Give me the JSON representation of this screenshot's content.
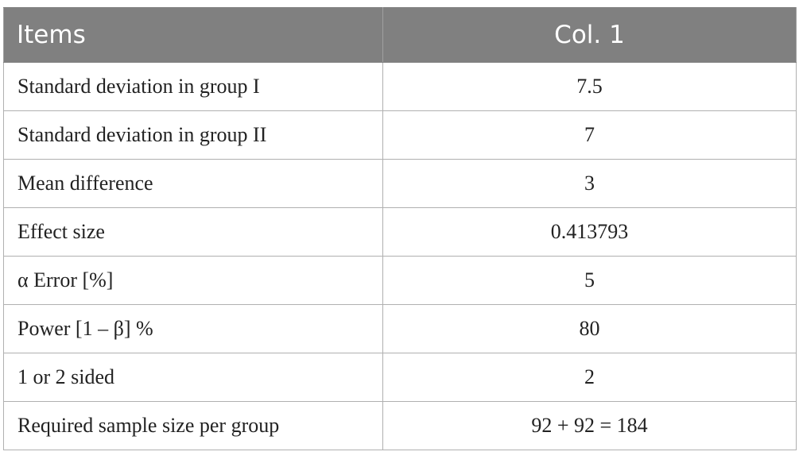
{
  "table": {
    "headers": [
      "Items",
      "Col. 1"
    ],
    "rows": [
      {
        "item": "Standard deviation in group I",
        "value": "7.5"
      },
      {
        "item": "Standard deviation in group II",
        "value": "7"
      },
      {
        "item": "Mean difference",
        "value": "3"
      },
      {
        "item": "Effect size",
        "value": "0.413793"
      },
      {
        "item": "α Error [%]",
        "value": "5"
      },
      {
        "item": "Power [1 – β] %",
        "value": "80"
      },
      {
        "item": "1 or 2 sided",
        "value": "2"
      },
      {
        "item": "Required sample size per group",
        "value": "92 + 92 = 184"
      }
    ]
  },
  "colors": {
    "header_background": "#808080",
    "header_text": "#ffffff",
    "grid_line": "#b0b0b0",
    "body_text": "#222222"
  }
}
